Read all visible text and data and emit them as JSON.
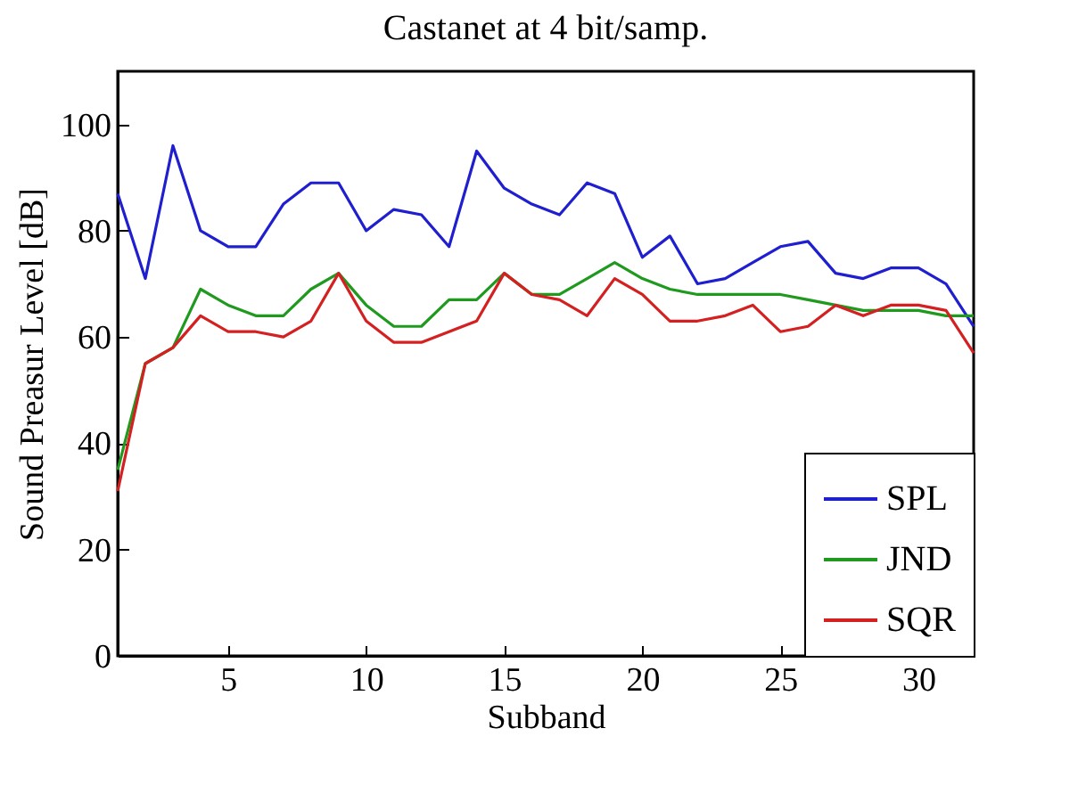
{
  "chart_data": {
    "type": "line",
    "title": "Castanet at 4 bit/samp.",
    "xlabel": "Subband",
    "ylabel": "Sound Preasur Level [dB]",
    "x": [
      1,
      2,
      3,
      4,
      5,
      6,
      7,
      8,
      9,
      10,
      11,
      12,
      13,
      14,
      15,
      16,
      17,
      18,
      19,
      20,
      21,
      22,
      23,
      24,
      25,
      26,
      27,
      28,
      29,
      30,
      31,
      32
    ],
    "series": [
      {
        "name": "SPL",
        "color": "#1f1fd0",
        "values": [
          87,
          71,
          96,
          80,
          77,
          77,
          85,
          89,
          89,
          80,
          84,
          83,
          77,
          95,
          88,
          85,
          83,
          89,
          87,
          75,
          79,
          70,
          71,
          74,
          77,
          78,
          72,
          71,
          73,
          73,
          70,
          62
        ]
      },
      {
        "name": "JND",
        "color": "#1f9a1f",
        "values": [
          35,
          55,
          58,
          69,
          66,
          64,
          64,
          69,
          72,
          66,
          62,
          62,
          67,
          67,
          72,
          68,
          68,
          71,
          74,
          71,
          69,
          68,
          68,
          68,
          68,
          67,
          66,
          65,
          65,
          65,
          64,
          64
        ]
      },
      {
        "name": "SQR",
        "color": "#d42020",
        "values": [
          31,
          55,
          58,
          64,
          61,
          61,
          60,
          63,
          72,
          63,
          59,
          59,
          61,
          63,
          72,
          68,
          67,
          64,
          71,
          68,
          63,
          63,
          64,
          66,
          61,
          62,
          66,
          64,
          66,
          66,
          65,
          57
        ]
      }
    ],
    "xlim": [
      1,
      32
    ],
    "xticks": [
      5,
      10,
      15,
      20,
      25,
      30
    ],
    "ylim": [
      0,
      110
    ],
    "yticks": [
      0,
      20,
      40,
      60,
      80,
      100
    ],
    "grid": false,
    "legend": "bottom right",
    "line_style": "solid"
  }
}
